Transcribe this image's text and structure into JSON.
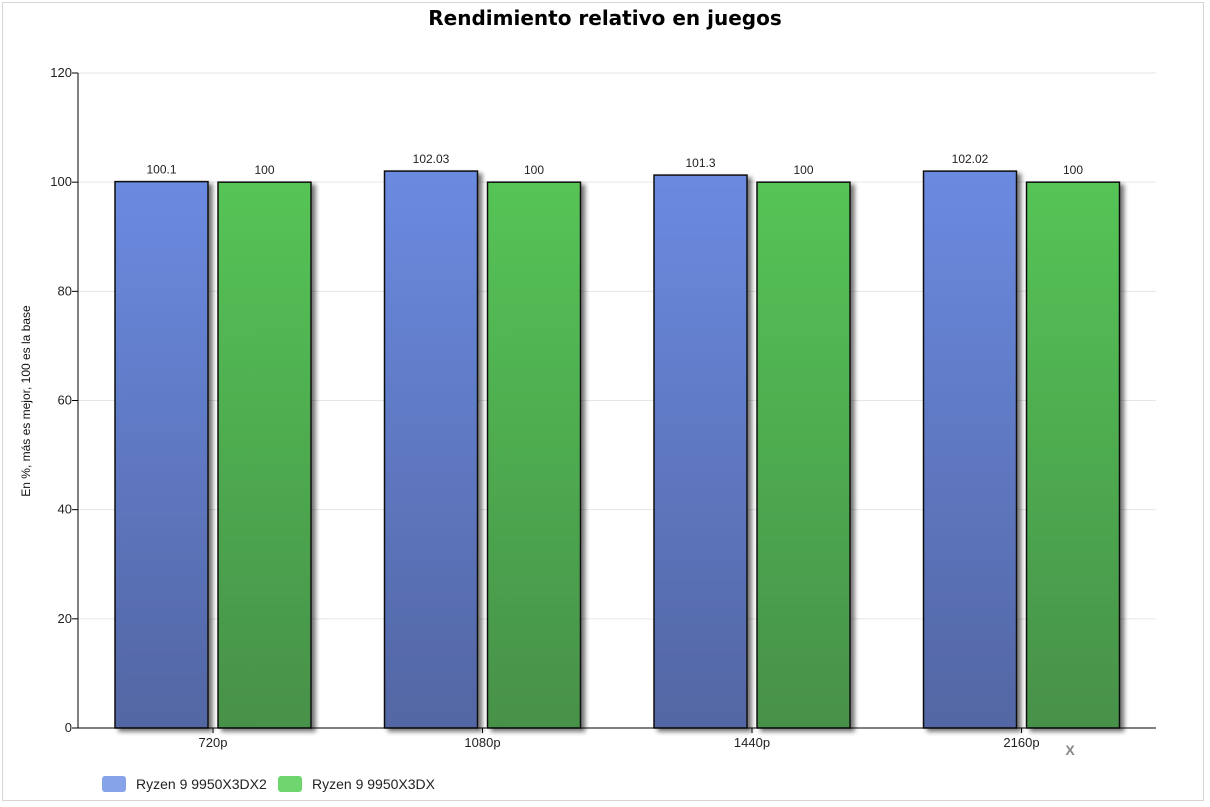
{
  "chart_data": {
    "type": "bar",
    "title": "Rendimiento relativo en juegos",
    "xlabel": "",
    "ylabel": "En %, más es mejor, 100 es la base",
    "ylim": [
      0,
      120
    ],
    "yticks": [
      0,
      20,
      40,
      60,
      80,
      100,
      120
    ],
    "grid": true,
    "legend_position": "bottom-left",
    "categories": [
      "720p",
      "1080p",
      "1440p",
      "2160p"
    ],
    "series": [
      {
        "name": "Ryzen 9 9950X3DX2",
        "values": [
          100.1,
          102.03,
          101.3,
          102.02
        ],
        "labels": [
          "100.1",
          "102.03",
          "101.3",
          "102.02"
        ],
        "color": "#6b8ae0",
        "color_dark": "#5266a3",
        "legend_color": "#86a2e8"
      },
      {
        "name": "Ryzen 9 9950X3DX",
        "values": [
          100,
          100,
          100,
          100
        ],
        "labels": [
          "100",
          "100",
          "100",
          "100"
        ],
        "color": "#55c455",
        "color_dark": "#47914a",
        "legend_color": "#6fd66f"
      }
    ]
  },
  "ui": {
    "close_glyph": "X"
  }
}
